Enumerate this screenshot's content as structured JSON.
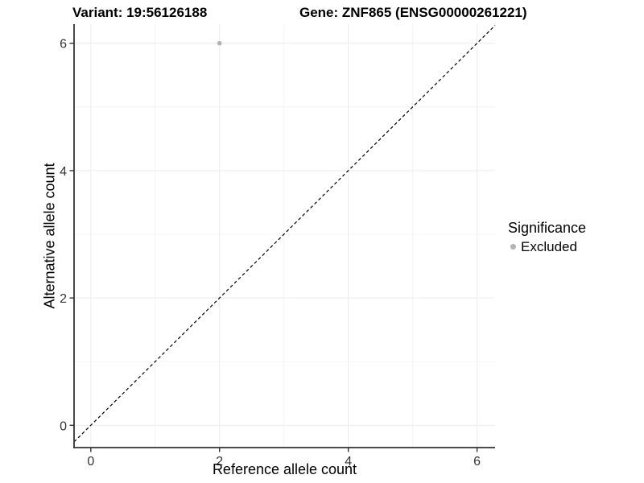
{
  "header": {
    "variant_title": "Variant: 19:56126188",
    "gene_title": "Gene: ZNF865 (ENSG00000261221)"
  },
  "legend": {
    "title": "Significance",
    "items": [
      {
        "label": "Excluded",
        "color": "#b3b3b3"
      }
    ]
  },
  "chart_data": {
    "type": "scatter",
    "title": "Variant: 19:56126188   Gene: ZNF865 (ENSG00000261221)",
    "xlabel": "Reference allele count",
    "ylabel": "Alternative allele count",
    "xlim": [
      -0.26,
      6.28
    ],
    "ylim": [
      -0.35,
      6.3
    ],
    "x_ticks": [
      0,
      2,
      4,
      6
    ],
    "y_ticks": [
      0,
      2,
      4,
      6
    ],
    "x_minor_gridlines": [
      1,
      3,
      5
    ],
    "y_minor_gridlines": [
      1,
      3,
      5
    ],
    "grid": true,
    "legend_position": "right",
    "series": [
      {
        "name": "Excluded",
        "color": "#b3b3b3",
        "points": [
          {
            "x": 2,
            "y": 6
          }
        ]
      }
    ],
    "reference_line": {
      "type": "identity",
      "slope": 1,
      "intercept": 0,
      "style": "dashed",
      "color": "#000000"
    },
    "colors": {
      "gridline_major": "#ececec",
      "gridline_minor": "#f1f1f1",
      "axis_line": "#333333",
      "tick_text": "#333333"
    }
  }
}
